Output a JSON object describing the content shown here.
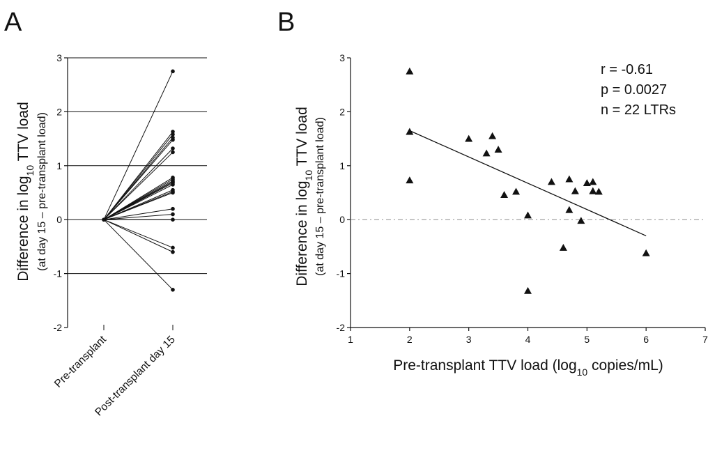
{
  "chart_data": [
    {
      "panel": "A",
      "type": "line",
      "categories": [
        "Pre-transplant",
        "Post-transplant day 15"
      ],
      "ylabel_main": "Difference in log",
      "ylabel_sub_num": "10",
      "ylabel_main_end": " TTV load",
      "ylabel_second": "(at day 15 – pre-transplant load)",
      "ylim": [
        -2,
        3
      ],
      "yticks": [
        -2,
        -1,
        0,
        1,
        2,
        3
      ],
      "grid": true,
      "start_value": 0,
      "end_values": [
        2.75,
        1.63,
        1.58,
        1.52,
        1.48,
        1.32,
        1.25,
        0.78,
        0.75,
        0.72,
        0.7,
        0.68,
        0.65,
        0.55,
        0.52,
        0.5,
        0.2,
        0.1,
        0.0,
        -0.52,
        -0.6,
        -1.3
      ]
    },
    {
      "panel": "B",
      "type": "scatter",
      "xlabel_main": "Pre-transplant TTV load (log",
      "xlabel_sub_num": "10",
      "xlabel_end": " copies/mL)",
      "ylabel_main": "Difference in log",
      "ylabel_sub_num": "10",
      "ylabel_main_end": " TTV load",
      "ylabel_second": "(at day 15 – pre-transplant load)",
      "xlim": [
        1,
        7
      ],
      "ylim": [
        -2,
        3
      ],
      "xticks": [
        1,
        2,
        3,
        4,
        5,
        6,
        7
      ],
      "yticks": [
        -2,
        -1,
        0,
        1,
        2,
        3
      ],
      "reference_line_y": 0,
      "regression_line": {
        "x": [
          2,
          6
        ],
        "y": [
          1.65,
          -0.3
        ]
      },
      "points": [
        {
          "x": 2.0,
          "y": 2.75
        },
        {
          "x": 2.0,
          "y": 1.63
        },
        {
          "x": 2.0,
          "y": 0.73
        },
        {
          "x": 3.0,
          "y": 1.5
        },
        {
          "x": 3.3,
          "y": 1.23
        },
        {
          "x": 3.4,
          "y": 1.55
        },
        {
          "x": 3.5,
          "y": 1.3
        },
        {
          "x": 3.6,
          "y": 0.46
        },
        {
          "x": 3.8,
          "y": 0.52
        },
        {
          "x": 4.0,
          "y": 0.08
        },
        {
          "x": 4.0,
          "y": -1.32
        },
        {
          "x": 4.4,
          "y": 0.7
        },
        {
          "x": 4.6,
          "y": -0.52
        },
        {
          "x": 4.7,
          "y": 0.75
        },
        {
          "x": 4.7,
          "y": 0.18
        },
        {
          "x": 4.8,
          "y": 0.53
        },
        {
          "x": 4.9,
          "y": -0.02
        },
        {
          "x": 5.0,
          "y": 0.68
        },
        {
          "x": 5.1,
          "y": 0.7
        },
        {
          "x": 5.1,
          "y": 0.53
        },
        {
          "x": 5.2,
          "y": 0.52
        },
        {
          "x": 6.0,
          "y": -0.62
        }
      ],
      "annotations": [
        "r = -0.61",
        "p = 0.0027",
        "n = 22 LTRs"
      ]
    }
  ]
}
